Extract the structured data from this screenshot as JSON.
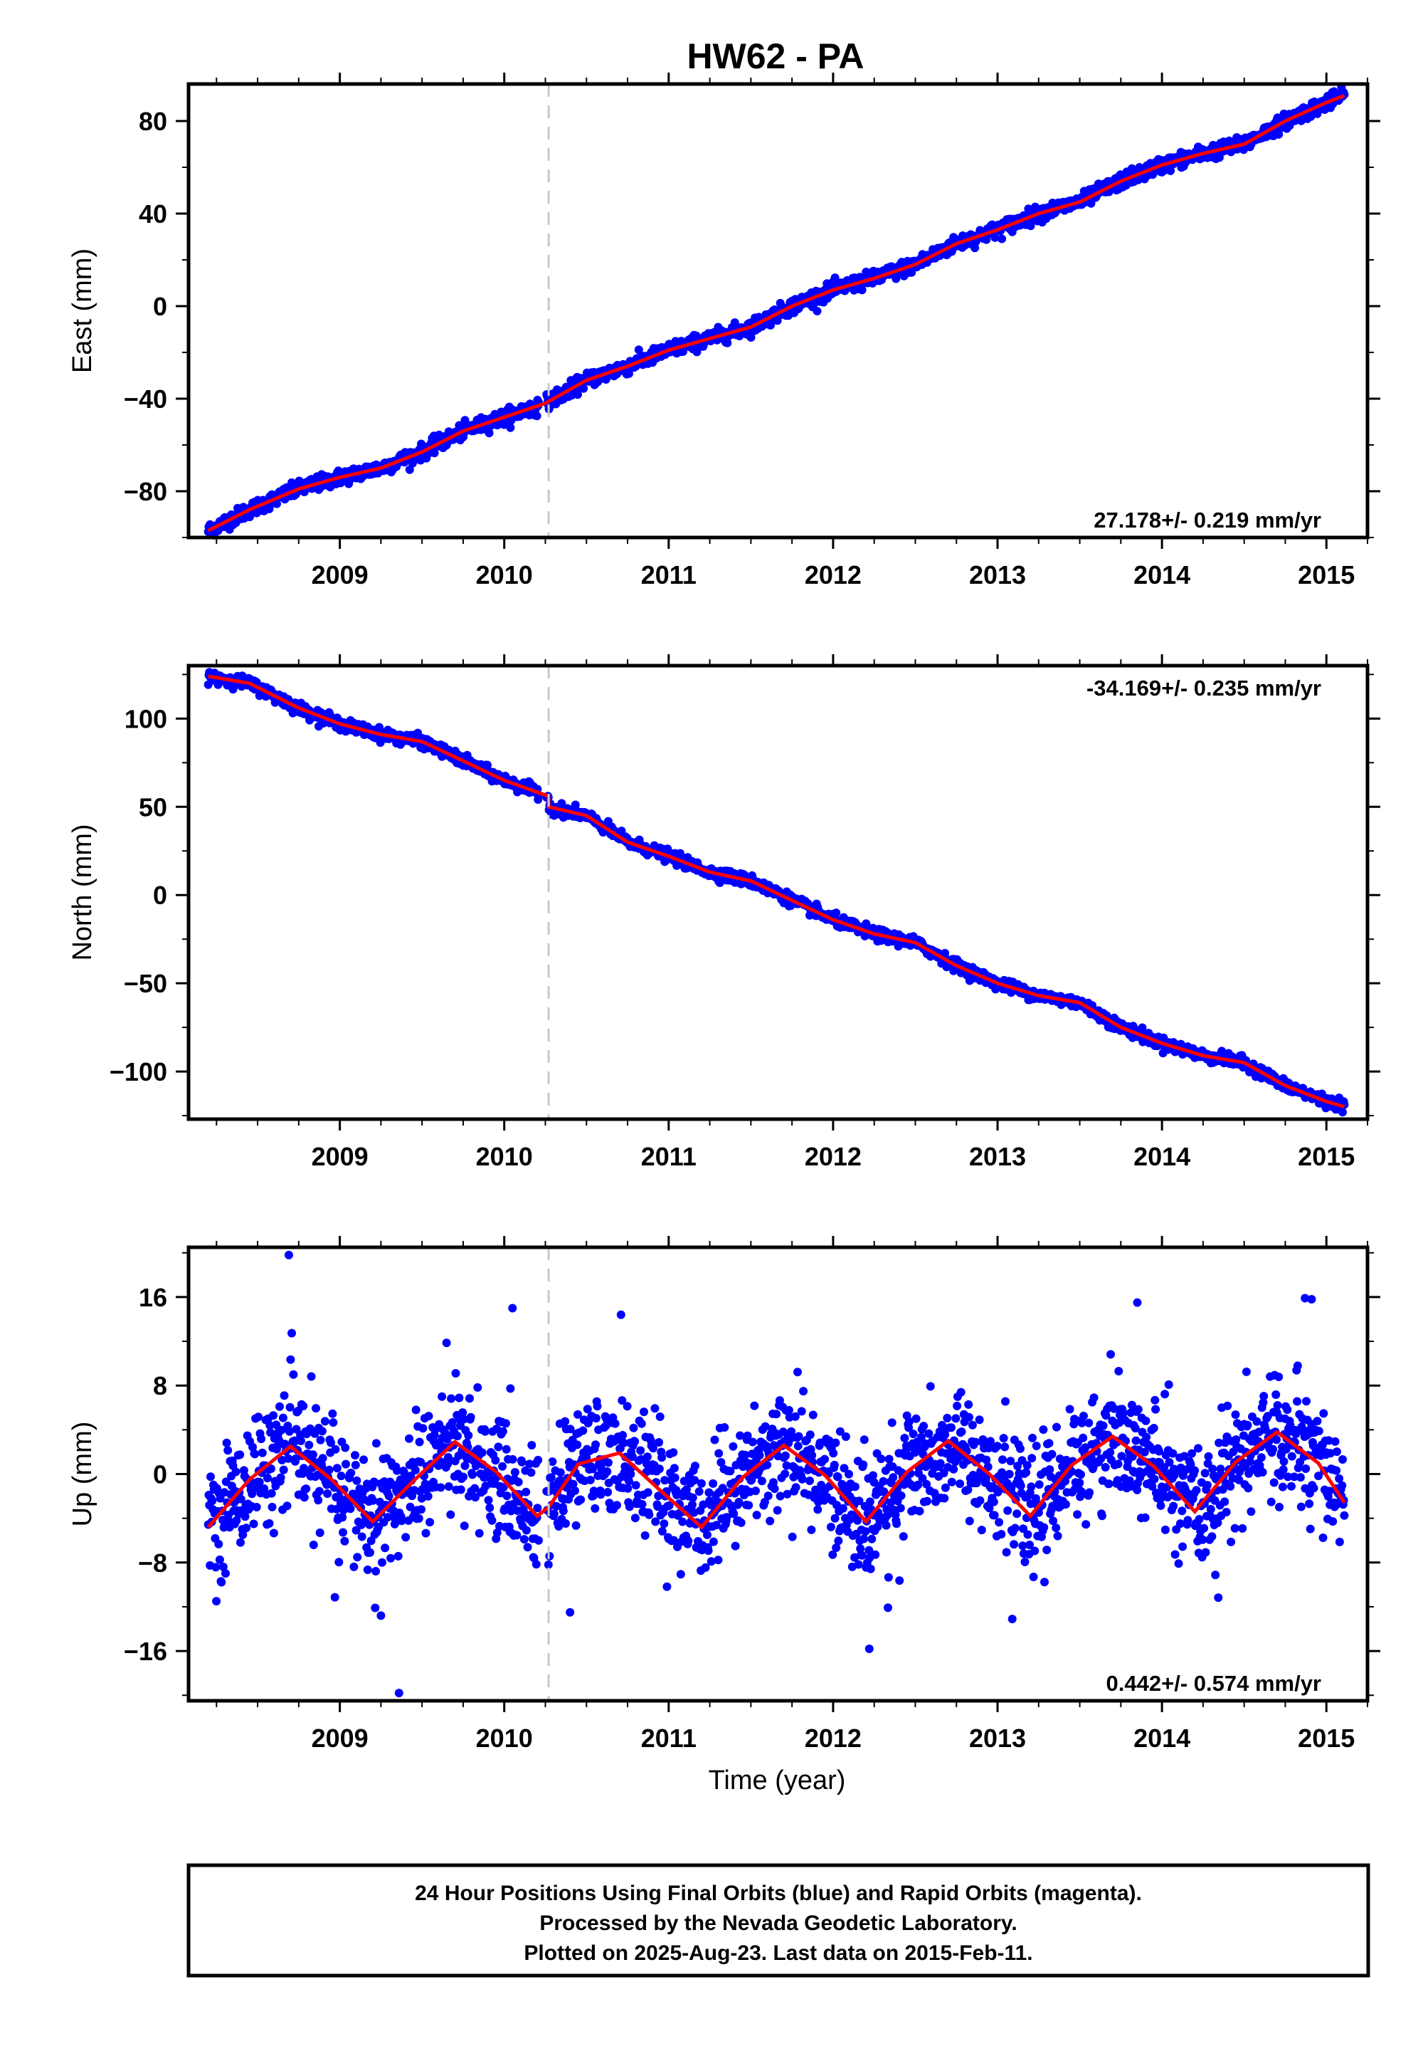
{
  "title": "HW62 - PA",
  "xlabel": "Time (year)",
  "footer": {
    "line1": "24 Hour Positions Using Final Orbits (blue) and Rapid Orbits (magenta).",
    "line2": "Processed by the Nevada Geodetic Laboratory.",
    "line3": "Plotted on 2025-Aug-23. Last data on 2015-Feb-11."
  },
  "colors": {
    "data": "#0000ff",
    "model": "#ff0000",
    "event": "#c8c8c8",
    "axes": "#000000"
  },
  "chart_data": [
    {
      "type": "scatter",
      "component": "east",
      "ylabel": "East (mm)",
      "xlim": [
        2008.08,
        2015.25
      ],
      "ylim": [
        -100,
        96
      ],
      "yticks": [
        -80,
        -40,
        0,
        40,
        80
      ],
      "xticks": [
        2009,
        2010,
        2011,
        2012,
        2013,
        2014,
        2015
      ],
      "rate_label": "27.178+/- 0.219 mm/yr",
      "rate_position": "bottom-right",
      "event_x": 2010.27,
      "series": [
        {
          "role": "model",
          "x": [
            2008.2,
            2008.45,
            2008.75,
            2009.0,
            2009.25,
            2009.5,
            2009.75,
            2010.0,
            2010.25,
            2010.5,
            2010.75,
            2011.0,
            2011.25,
            2011.5,
            2011.75,
            2012.0,
            2012.25,
            2012.5,
            2012.75,
            2013.0,
            2013.25,
            2013.5,
            2013.75,
            2014.0,
            2014.25,
            2014.5,
            2014.75,
            2015.0,
            2015.11
          ],
          "y": [
            -97,
            -88,
            -79,
            -74,
            -70,
            -63,
            -54,
            -48,
            -42,
            -32,
            -26,
            -19,
            -14,
            -9,
            0,
            7,
            12,
            18,
            27,
            33,
            40,
            45,
            54,
            61,
            66,
            70,
            80,
            88,
            91
          ]
        }
      ]
    },
    {
      "type": "scatter",
      "component": "north",
      "ylabel": "North (mm)",
      "xlim": [
        2008.08,
        2015.25
      ],
      "ylim": [
        -127,
        130
      ],
      "yticks": [
        -100,
        -50,
        0,
        50,
        100
      ],
      "xticks": [
        2009,
        2010,
        2011,
        2012,
        2013,
        2014,
        2015
      ],
      "rate_label": "-34.169+/- 0.235 mm/yr",
      "rate_position": "top-right",
      "event_x": 2010.27,
      "series": [
        {
          "role": "model",
          "x": [
            2008.2,
            2008.45,
            2008.75,
            2009.0,
            2009.25,
            2009.5,
            2009.75,
            2010.0,
            2010.269,
            2010.271,
            2010.5,
            2010.75,
            2011.0,
            2011.25,
            2011.5,
            2011.75,
            2012.0,
            2012.25,
            2012.5,
            2012.75,
            2013.0,
            2013.25,
            2013.5,
            2013.75,
            2014.0,
            2014.25,
            2014.5,
            2014.75,
            2015.0,
            2015.11
          ],
          "y": [
            124,
            120,
            106,
            97,
            91,
            87,
            76,
            65,
            56,
            50,
            45,
            30,
            22,
            13,
            8,
            -3,
            -14,
            -22,
            -27,
            -40,
            -50,
            -57,
            -61,
            -75,
            -84,
            -91,
            -95,
            -108,
            -117,
            -120
          ]
        }
      ]
    },
    {
      "type": "scatter",
      "component": "up",
      "ylabel": "Up (mm)",
      "xlim": [
        2008.08,
        2015.25
      ],
      "ylim": [
        -20.5,
        20.5
      ],
      "yticks": [
        -16,
        -8,
        0,
        8,
        16
      ],
      "xticks": [
        2009,
        2010,
        2011,
        2012,
        2013,
        2014,
        2015
      ],
      "rate_label": "0.442+/- 0.574 mm/yr",
      "rate_position": "bottom-right",
      "event_x": 2010.27,
      "series": [
        {
          "role": "model",
          "x": [
            2008.2,
            2008.45,
            2008.7,
            2008.95,
            2009.2,
            2009.45,
            2009.7,
            2009.95,
            2010.2,
            2010.27,
            2010.45,
            2010.7,
            2010.95,
            2011.2,
            2011.45,
            2011.7,
            2011.95,
            2012.2,
            2012.45,
            2012.7,
            2012.95,
            2013.2,
            2013.45,
            2013.7,
            2013.95,
            2014.2,
            2014.45,
            2014.7,
            2014.95,
            2015.11
          ],
          "y": [
            -4.8,
            -0.5,
            2.5,
            -0.5,
            -4.3,
            -0.6,
            2.9,
            0.2,
            -3.8,
            -3.0,
            0.9,
            1.9,
            -1.5,
            -4.8,
            -0.3,
            2.6,
            -0.1,
            -4.3,
            0.2,
            3.0,
            0.0,
            -3.8,
            0.8,
            3.4,
            0.7,
            -3.4,
            1.1,
            3.8,
            1.0,
            -2.6
          ]
        },
        {
          "role": "outliers",
          "x": [
            2008.69,
            2009.25,
            2009.36,
            2010.05,
            2010.4,
            2010.71,
            2012.22,
            2013.85,
            2014.87,
            2014.91
          ],
          "y": [
            19.8,
            -12.8,
            -19.8,
            15.0,
            -12.5,
            14.4,
            -15.8,
            15.5,
            15.9,
            15.8
          ]
        }
      ]
    }
  ]
}
